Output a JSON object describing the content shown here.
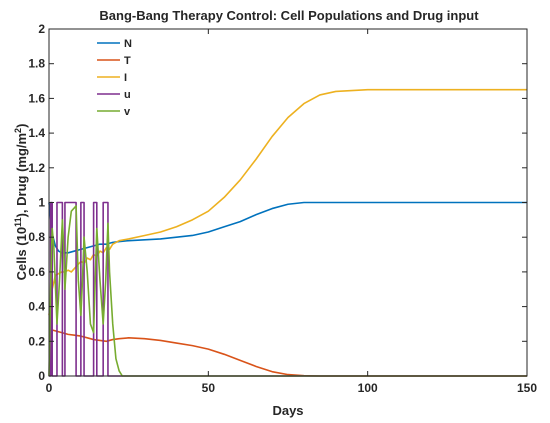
{
  "chart_data": {
    "type": "line",
    "title": "Bang-Bang Therapy Control: Cell Populations and Drug input",
    "xlabel": "Days",
    "ylabel_parts": [
      "Cells (10",
      "11",
      "), Drug (mg/m",
      "2",
      ")"
    ],
    "xlim": [
      0,
      150
    ],
    "ylim": [
      0,
      2
    ],
    "xticks": [
      0,
      50,
      100,
      150
    ],
    "yticks": [
      0,
      0.2,
      0.4,
      0.6,
      0.8,
      1,
      1.2,
      1.4,
      1.6,
      1.8,
      2
    ],
    "grid": false,
    "legend_position": "top-left",
    "series": [
      {
        "name": "N",
        "color": "#0072BD",
        "x": [
          0,
          1,
          2,
          3,
          4,
          6,
          8,
          10,
          12,
          14,
          16,
          18,
          20,
          22,
          25,
          30,
          35,
          40,
          45,
          50,
          55,
          60,
          65,
          70,
          75,
          80,
          85,
          90,
          100,
          120,
          150
        ],
        "y": [
          1.0,
          0.82,
          0.75,
          0.72,
          0.71,
          0.71,
          0.72,
          0.73,
          0.74,
          0.75,
          0.76,
          0.76,
          0.77,
          0.775,
          0.78,
          0.785,
          0.79,
          0.8,
          0.81,
          0.83,
          0.86,
          0.89,
          0.93,
          0.965,
          0.99,
          1.0,
          1.0,
          1.0,
          1.0,
          1.0,
          1.0
        ]
      },
      {
        "name": "T",
        "color": "#D95319",
        "x": [
          0,
          2,
          4,
          6,
          8,
          10,
          12,
          14,
          16,
          18,
          20,
          22,
          25,
          30,
          35,
          40,
          45,
          50,
          55,
          60,
          65,
          70,
          75,
          80,
          85,
          90,
          100,
          150
        ],
        "y": [
          0.27,
          0.26,
          0.25,
          0.24,
          0.235,
          0.23,
          0.22,
          0.21,
          0.205,
          0.2,
          0.21,
          0.215,
          0.22,
          0.215,
          0.205,
          0.19,
          0.175,
          0.155,
          0.125,
          0.09,
          0.055,
          0.025,
          0.008,
          0.002,
          0.0,
          0.0,
          0.0,
          0.0
        ]
      },
      {
        "name": "I",
        "color": "#EDB120",
        "x": [
          0,
          1,
          2,
          3,
          4,
          5,
          6,
          7,
          8,
          9,
          10,
          11,
          12,
          13,
          14,
          15,
          16,
          17,
          18,
          19,
          20,
          21,
          22,
          25,
          30,
          35,
          40,
          45,
          50,
          55,
          60,
          65,
          70,
          75,
          80,
          85,
          90,
          95,
          100,
          110,
          120,
          150
        ],
        "y": [
          0.35,
          0.5,
          0.58,
          0.59,
          0.6,
          0.6,
          0.61,
          0.6,
          0.62,
          0.64,
          0.66,
          0.65,
          0.68,
          0.67,
          0.7,
          0.69,
          0.72,
          0.71,
          0.74,
          0.73,
          0.76,
          0.77,
          0.78,
          0.79,
          0.81,
          0.83,
          0.86,
          0.9,
          0.95,
          1.03,
          1.13,
          1.25,
          1.38,
          1.49,
          1.57,
          1.62,
          1.64,
          1.645,
          1.65,
          1.65,
          1.65,
          1.65
        ]
      },
      {
        "name": "u",
        "color": "#7E2F8E",
        "x": [
          0,
          0.5,
          0.5,
          1.0,
          1.0,
          2.5,
          2.5,
          4.2,
          4.2,
          5.0,
          5.0,
          8.5,
          8.5,
          10.0,
          10.0,
          11.0,
          11.0,
          14.0,
          14.0,
          15.0,
          15.0,
          17.0,
          17.0,
          18.5,
          18.5,
          20.0,
          20.0,
          150
        ],
        "y": [
          0,
          0,
          1,
          1,
          0,
          0,
          1,
          1,
          0,
          0,
          1,
          1,
          0,
          0,
          1,
          1,
          0,
          0,
          1,
          1,
          0,
          0,
          1,
          1,
          0,
          0,
          0,
          0
        ]
      },
      {
        "name": "v",
        "color": "#77AC30",
        "x": [
          0,
          0.5,
          1.0,
          1.5,
          2.5,
          3.3,
          4.2,
          4.6,
          5.0,
          6.0,
          7.0,
          8.5,
          9.2,
          10.0,
          10.5,
          11.0,
          12.0,
          13.0,
          14.0,
          14.5,
          15.0,
          16.0,
          17.0,
          17.8,
          18.5,
          19.0,
          20.0,
          21.0,
          22.0,
          23.0,
          150
        ],
        "y": [
          0.0,
          0.5,
          0.85,
          0.75,
          0.3,
          0.55,
          0.9,
          0.75,
          0.5,
          0.8,
          0.95,
          0.98,
          0.55,
          0.35,
          0.55,
          0.8,
          0.6,
          0.3,
          0.25,
          0.55,
          0.85,
          0.55,
          0.3,
          0.55,
          0.88,
          0.6,
          0.3,
          0.1,
          0.03,
          0.0,
          0.0
        ]
      }
    ]
  }
}
